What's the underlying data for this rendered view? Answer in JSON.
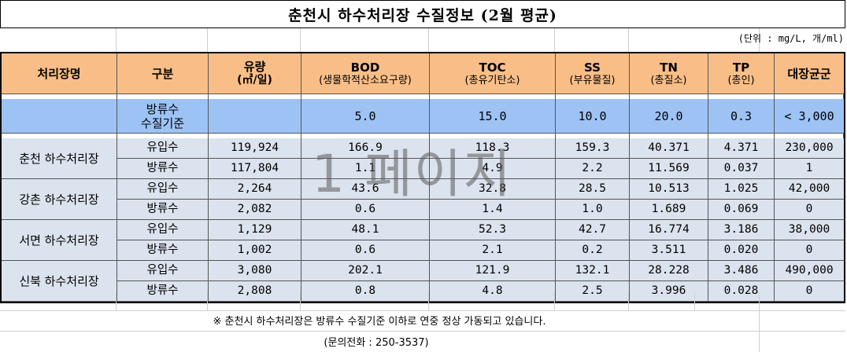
{
  "title": "춘천시 하수처리장 수질정보 (2월 평균)",
  "unit_note": "(단위 : mg/L, 개/ml)",
  "headers": [
    {
      "main": "처리장명",
      "sub": ""
    },
    {
      "main": "구분",
      "sub": ""
    },
    {
      "main": "유량",
      "sub": "(㎥/일)"
    },
    {
      "main": "BOD",
      "sub": "(생물학적산소요구량)"
    },
    {
      "main": "TOC",
      "sub": "(총유기탄소)"
    },
    {
      "main": "SS",
      "sub": "(부유물질)"
    },
    {
      "main": "TN",
      "sub": "(총질소)"
    },
    {
      "main": "TP",
      "sub": "(총인)"
    },
    {
      "main": "대장균군",
      "sub": ""
    }
  ],
  "standard": {
    "label_line1": "방류수",
    "label_line2": "수질기준",
    "flow": "",
    "bod": "5.0",
    "toc": "15.0",
    "ss": "10.0",
    "tn": "20.0",
    "tp": "0.3",
    "coliform": "< 3,000"
  },
  "plants": [
    {
      "name": "춘천 하수처리장",
      "rows": [
        {
          "type": "유입수",
          "flow": "119,924",
          "bod": "166.9",
          "toc": "118.3",
          "ss": "159.3",
          "tn": "40.371",
          "tp": "4.371",
          "coliform": "230,000"
        },
        {
          "type": "방류수",
          "flow": "117,804",
          "bod": "1.1",
          "toc": "4.9",
          "ss": "2.2",
          "tn": "11.569",
          "tp": "0.037",
          "coliform": "1"
        }
      ]
    },
    {
      "name": "강촌 하수처리장",
      "rows": [
        {
          "type": "유입수",
          "flow": "2,264",
          "bod": "43.6",
          "toc": "32.8",
          "ss": "28.5",
          "tn": "10.513",
          "tp": "1.025",
          "coliform": "42,000"
        },
        {
          "type": "방류수",
          "flow": "2,082",
          "bod": "0.6",
          "toc": "1.4",
          "ss": "1.0",
          "tn": "1.689",
          "tp": "0.069",
          "coliform": "0"
        }
      ]
    },
    {
      "name": "서면 하수처리장",
      "rows": [
        {
          "type": "유입수",
          "flow": "1,129",
          "bod": "48.1",
          "toc": "52.3",
          "ss": "42.7",
          "tn": "16.774",
          "tp": "3.186",
          "coliform": "38,000"
        },
        {
          "type": "방류수",
          "flow": "1,002",
          "bod": "0.6",
          "toc": "2.1",
          "ss": "0.2",
          "tn": "3.511",
          "tp": "0.020",
          "coliform": "0"
        }
      ]
    },
    {
      "name": "신북 하수처리장",
      "rows": [
        {
          "type": "유입수",
          "flow": "3,080",
          "bod": "202.1",
          "toc": "121.9",
          "ss": "132.1",
          "tn": "28.228",
          "tp": "3.486",
          "coliform": "490,000"
        },
        {
          "type": "방류수",
          "flow": "2,808",
          "bod": "0.8",
          "toc": "4.8",
          "ss": "2.5",
          "tn": "3.996",
          "tp": "0.028",
          "coliform": "0"
        }
      ]
    }
  ],
  "watermark": "1 페이지",
  "footnote": "※ 춘천시 하수처리장은 방류수 수질기준 이하로 연중 정상 가동되고 있습니다.",
  "contact": "(문의전화 : 250-3537)",
  "colors": {
    "header_bg": "#f9be87",
    "standard_bg": "#9dc3f5",
    "data_bg": "#dbe3ee"
  }
}
